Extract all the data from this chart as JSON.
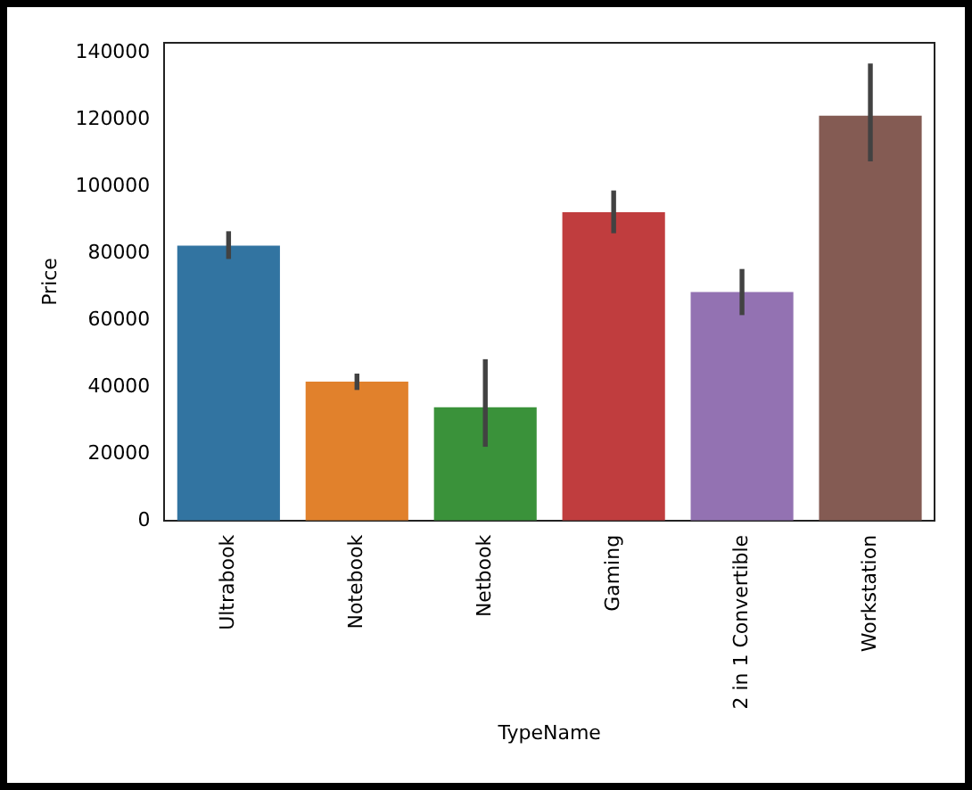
{
  "chart_data": {
    "type": "bar",
    "xlabel": "TypeName",
    "ylabel": "Price",
    "categories": [
      "Ultrabook",
      "Notebook",
      "Netbook",
      "Gaming",
      "2 in 1 Convertible",
      "Workstation"
    ],
    "values": [
      82300,
      41600,
      33900,
      92300,
      68400,
      121200
    ],
    "colors": [
      "#3274a1",
      "#e1812c",
      "#3a923a",
      "#c03d3e",
      "#9372b2",
      "#845b53"
    ],
    "errors": [
      [
        78300,
        86600
      ],
      [
        39100,
        44000
      ],
      [
        22100,
        48300
      ],
      [
        86000,
        98800
      ],
      [
        61500,
        75300
      ],
      [
        107500,
        136800
      ]
    ],
    "ylim": [
      0,
      143000
    ],
    "yticks": [
      0,
      20000,
      40000,
      60000,
      80000,
      100000,
      120000,
      140000
    ]
  }
}
